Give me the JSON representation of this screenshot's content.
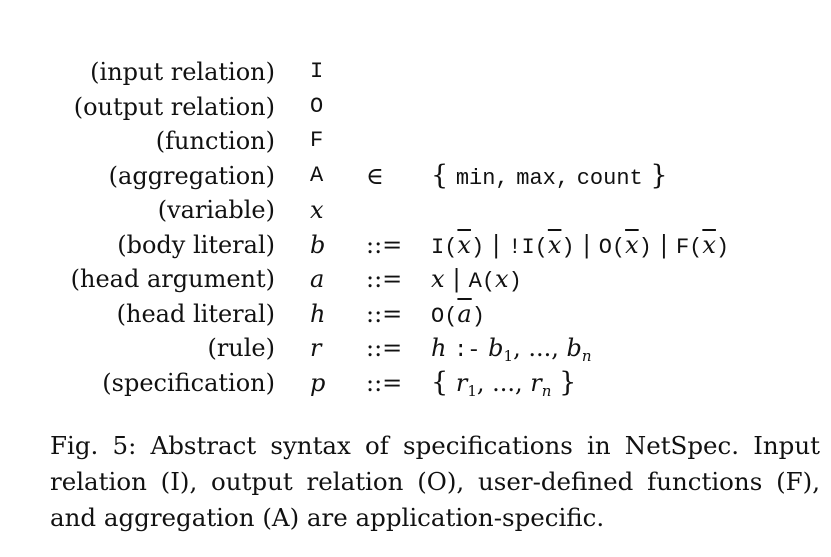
{
  "figure": {
    "rows": [
      {
        "label": "(input relation)",
        "symbol": "I",
        "op": "",
        "rhs": ""
      },
      {
        "label": "(output relation)",
        "symbol": "O",
        "op": "",
        "rhs": ""
      },
      {
        "label": "(function)",
        "symbol": "F",
        "op": "",
        "rhs": ""
      },
      {
        "label": "(aggregation)",
        "symbol": "A",
        "op": "∈",
        "rhs_items": [
          "min,",
          "max,",
          "count"
        ]
      },
      {
        "label": "(variable)",
        "symbol": "x",
        "op": "",
        "rhs": ""
      },
      {
        "label": "(body literal)",
        "symbol": "b",
        "op": "::=",
        "rhs": "I(x̄) | !I(x̄) | O(x̄) | F(x̄)"
      },
      {
        "label": "(head argument)",
        "symbol": "a",
        "op": "::=",
        "rhs": "x | A(x)"
      },
      {
        "label": "(head literal)",
        "symbol": "h",
        "op": "::=",
        "rhs": "O(ā)"
      },
      {
        "label": "(rule)",
        "symbol": "r",
        "op": "::=",
        "rhs": "h :- b1, ..., bn"
      },
      {
        "label": "(specification)",
        "symbol": "p",
        "op": "::=",
        "rhs": "{ r1, ..., rn }"
      }
    ],
    "caption": "Fig. 5: Abstract syntax of specifications in NetSpec. Input relation (I), output relation (O), user-defined functions (F), and aggregation (A) are application-specific."
  }
}
